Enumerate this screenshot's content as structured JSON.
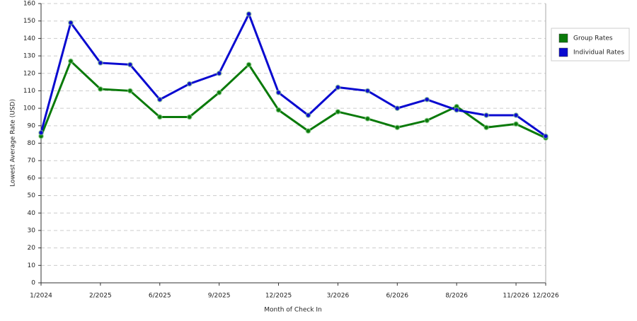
{
  "chart_data": {
    "type": "line",
    "x_label": "Month of Check In",
    "y_label": "Lowest Average Rate (USD)",
    "categories": [
      "1/2024",
      null,
      "2/2025",
      null,
      "6/2025",
      null,
      "9/2025",
      null,
      "12/2025",
      null,
      "3/2026",
      null,
      "6/2026",
      null,
      "8/2026",
      null,
      "11/2026",
      "12/2026"
    ],
    "series": [
      {
        "name": "Group Rates",
        "color": "#0a7a0a",
        "values": [
          84,
          127,
          111,
          110,
          95,
          95,
          109,
          125,
          99,
          87,
          98,
          94,
          89,
          93,
          101,
          89,
          91,
          83
        ]
      },
      {
        "name": "Individual Rates",
        "color": "#0a0ad0",
        "values": [
          86,
          149,
          126,
          125,
          105,
          114,
          120,
          154,
          109,
          96,
          112,
          110,
          100,
          105,
          99,
          96,
          96,
          84
        ]
      }
    ],
    "ylim": [
      0,
      160
    ],
    "yticks": [
      0,
      10,
      20,
      30,
      40,
      50,
      60,
      70,
      80,
      90,
      100,
      110,
      120,
      130,
      140,
      150,
      160
    ],
    "grid": true,
    "legend": "right"
  }
}
